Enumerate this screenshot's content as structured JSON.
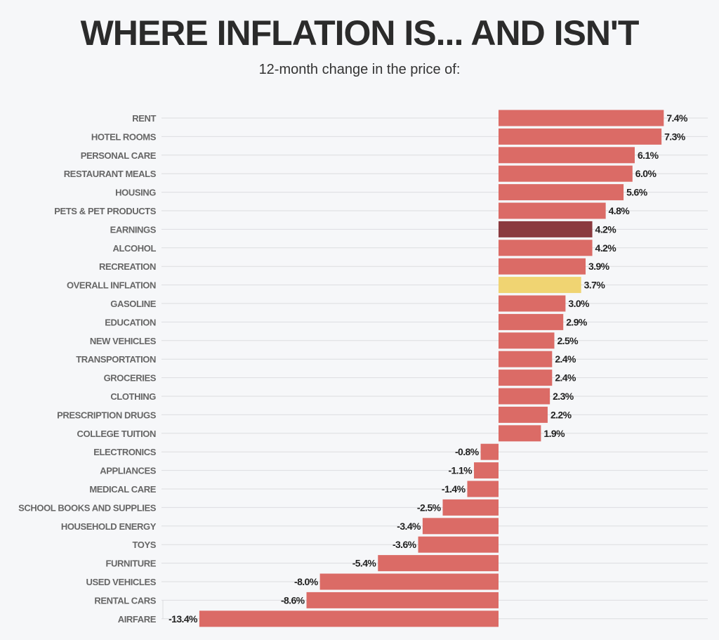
{
  "chart_data": {
    "type": "bar",
    "orientation": "horizontal",
    "title": "WHERE INFLATION IS... AND ISN'T",
    "subtitle": "12-month change in the price of:",
    "xlabel": "",
    "ylabel": "",
    "unit": "%",
    "xlim": [
      -13.4,
      7.4
    ],
    "grid": true,
    "categories": [
      "RENT",
      "HOTEL ROOMS",
      "PERSONAL CARE",
      "RESTAURANT MEALS",
      "HOUSING",
      "PETS & PET PRODUCTS",
      "EARNINGS",
      "ALCOHOL",
      "RECREATION",
      "OVERALL INFLATION",
      "GASOLINE",
      "EDUCATION",
      "NEW VEHICLES",
      "TRANSPORTATION",
      "GROCERIES",
      "CLOTHING",
      "PRESCRIPTION DRUGS",
      "COLLEGE TUITION",
      "ELECTRONICS",
      "APPLIANCES",
      "MEDICAL CARE",
      "SCHOOL BOOKS AND SUPPLIES",
      "HOUSEHOLD ENERGY",
      "TOYS",
      "FURNITURE",
      "USED VEHICLES",
      "RENTAL CARS",
      "AIRFARE"
    ],
    "values": [
      7.4,
      7.3,
      6.1,
      6.0,
      5.6,
      4.8,
      4.2,
      4.2,
      3.9,
      3.7,
      3.0,
      2.9,
      2.5,
      2.4,
      2.4,
      2.3,
      2.2,
      1.9,
      -0.8,
      -1.1,
      -1.4,
      -2.5,
      -3.4,
      -3.6,
      -5.4,
      -8.0,
      -8.6,
      -13.4
    ],
    "labels": [
      "7.4%",
      "7.3%",
      "6.1%",
      "6.0%",
      "5.6%",
      "4.8%",
      "4.2%",
      "4.2%",
      "3.9%",
      "3.7%",
      "3.0%",
      "2.9%",
      "2.5%",
      "2.4%",
      "2.4%",
      "2.3%",
      "2.2%",
      "1.9%",
      "-0.8%",
      "-1.1%",
      "-1.4%",
      "-2.5%",
      "-3.4%",
      "-3.6%",
      "-5.4%",
      "-8.0%",
      "-8.6%",
      "-13.4%"
    ],
    "colors": {
      "default": "#db6b66",
      "EARNINGS": "#8b3a3f",
      "OVERALL INFLATION": "#f0d472",
      "grid": "#dcdde0"
    }
  }
}
